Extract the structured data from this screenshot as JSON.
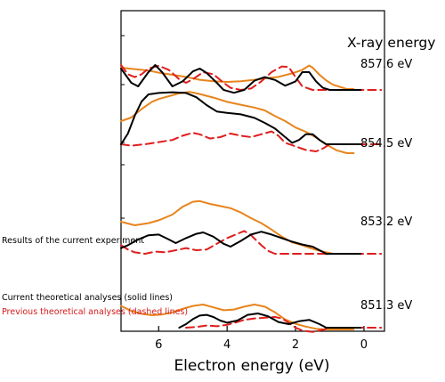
{
  "chart_data": {
    "type": "line",
    "title": "",
    "xlabel": "Electron energy (eV)",
    "ylabel": "",
    "xlim": [
      7.1,
      -0.6
    ],
    "x_reversed": true,
    "xticks": [
      6,
      4,
      2,
      0
    ],
    "grid": false,
    "legend_title": "X-ray energy",
    "annotations": [
      "Results of the current experiment",
      "Current theoretical analyses (solid lines)",
      "Previous theoretical analyses (dashed lines)"
    ],
    "styles": {
      "experiment": {
        "color": "#e8841c",
        "dash": "solid"
      },
      "current_theory": {
        "color": "#000000",
        "dash": "solid"
      },
      "previous_theory": {
        "color": "#e01e1e",
        "dash": "dashed"
      }
    },
    "panels": [
      {
        "energy_label": "857.6 eV",
        "experiment": [
          [
            7.1,
            0.3
          ],
          [
            6.7,
            0.28
          ],
          [
            6.3,
            0.26
          ],
          [
            6.0,
            0.23
          ],
          [
            5.6,
            0.2
          ],
          [
            5.2,
            0.17
          ],
          [
            4.8,
            0.13
          ],
          [
            4.4,
            0.11
          ],
          [
            4.0,
            0.1
          ],
          [
            3.6,
            0.11
          ],
          [
            3.2,
            0.13
          ],
          [
            2.9,
            0.15
          ],
          [
            2.5,
            0.17
          ],
          [
            2.1,
            0.22
          ],
          [
            1.8,
            0.27
          ],
          [
            1.6,
            0.33
          ],
          [
            1.5,
            0.3
          ],
          [
            1.3,
            0.2
          ],
          [
            1.1,
            0.12
          ],
          [
            0.9,
            0.06
          ],
          [
            0.7,
            0.03
          ],
          [
            0.5,
            0.0
          ],
          [
            0.3,
            0.0
          ]
        ],
        "current_theory": [
          [
            7.1,
            0.3
          ],
          [
            6.8,
            0.1
          ],
          [
            6.6,
            0.05
          ],
          [
            6.3,
            0.25
          ],
          [
            6.1,
            0.35
          ],
          [
            5.9,
            0.25
          ],
          [
            5.6,
            0.05
          ],
          [
            5.3,
            0.12
          ],
          [
            5.0,
            0.26
          ],
          [
            4.8,
            0.3
          ],
          [
            4.6,
            0.24
          ],
          [
            4.3,
            0.1
          ],
          [
            4.1,
            0.0
          ],
          [
            3.8,
            -0.04
          ],
          [
            3.5,
            0.0
          ],
          [
            3.2,
            0.13
          ],
          [
            2.9,
            0.18
          ],
          [
            2.6,
            0.14
          ],
          [
            2.3,
            0.06
          ],
          [
            2.0,
            0.12
          ],
          [
            1.8,
            0.25
          ],
          [
            1.6,
            0.25
          ],
          [
            1.4,
            0.12
          ],
          [
            1.2,
            0.03
          ],
          [
            1.0,
            0.0
          ],
          [
            0.5,
            0.0
          ],
          [
            0.1,
            0.0
          ]
        ],
        "previous_theory": [
          [
            7.1,
            0.35
          ],
          [
            6.9,
            0.22
          ],
          [
            6.7,
            0.18
          ],
          [
            6.5,
            0.22
          ],
          [
            6.3,
            0.3
          ],
          [
            6.0,
            0.34
          ],
          [
            5.7,
            0.28
          ],
          [
            5.4,
            0.15
          ],
          [
            5.2,
            0.1
          ],
          [
            5.0,
            0.15
          ],
          [
            4.7,
            0.25
          ],
          [
            4.4,
            0.22
          ],
          [
            4.1,
            0.1
          ],
          [
            3.9,
            0.03
          ],
          [
            3.6,
            0.0
          ],
          [
            3.3,
            0.02
          ],
          [
            3.0,
            0.12
          ],
          [
            2.7,
            0.25
          ],
          [
            2.4,
            0.33
          ],
          [
            2.2,
            0.32
          ],
          [
            2.0,
            0.18
          ],
          [
            1.8,
            0.05
          ],
          [
            1.5,
            0.0
          ],
          [
            0.9,
            0.0
          ],
          [
            -0.5,
            0.0
          ]
        ]
      },
      {
        "energy_label": "854.5 eV",
        "experiment": [
          [
            7.1,
            0.45
          ],
          [
            6.8,
            0.5
          ],
          [
            6.5,
            0.62
          ],
          [
            6.2,
            0.72
          ],
          [
            6.0,
            0.76
          ],
          [
            5.7,
            0.8
          ],
          [
            5.4,
            0.84
          ],
          [
            5.1,
            0.86
          ],
          [
            4.8,
            0.83
          ],
          [
            4.4,
            0.78
          ],
          [
            4.0,
            0.72
          ],
          [
            3.6,
            0.68
          ],
          [
            3.2,
            0.64
          ],
          [
            2.9,
            0.6
          ],
          [
            2.6,
            0.52
          ],
          [
            2.3,
            0.45
          ],
          [
            2.0,
            0.36
          ],
          [
            1.7,
            0.3
          ],
          [
            1.4,
            0.22
          ],
          [
            1.1,
            0.12
          ],
          [
            0.8,
            0.04
          ],
          [
            0.5,
            0.0
          ],
          [
            0.3,
            0.0
          ]
        ],
        "current_theory": [
          [
            7.1,
            0.0
          ],
          [
            6.9,
            0.15
          ],
          [
            6.7,
            0.4
          ],
          [
            6.5,
            0.6
          ],
          [
            6.3,
            0.7
          ],
          [
            6.0,
            0.72
          ],
          [
            5.6,
            0.73
          ],
          [
            5.2,
            0.72
          ],
          [
            4.9,
            0.66
          ],
          [
            4.6,
            0.55
          ],
          [
            4.3,
            0.46
          ],
          [
            4.0,
            0.44
          ],
          [
            3.6,
            0.42
          ],
          [
            3.2,
            0.37
          ],
          [
            2.9,
            0.3
          ],
          [
            2.6,
            0.22
          ],
          [
            2.3,
            0.1
          ],
          [
            2.1,
            0.02
          ],
          [
            1.9,
            0.06
          ],
          [
            1.7,
            0.14
          ],
          [
            1.5,
            0.14
          ],
          [
            1.3,
            0.06
          ],
          [
            1.1,
            0.0
          ],
          [
            0.9,
            0.0
          ],
          [
            0.1,
            0.0
          ]
        ],
        "previous_theory": [
          [
            7.1,
            0.0
          ],
          [
            6.8,
            -0.02
          ],
          [
            6.4,
            0.0
          ],
          [
            6.0,
            0.03
          ],
          [
            5.6,
            0.06
          ],
          [
            5.3,
            0.12
          ],
          [
            5.0,
            0.16
          ],
          [
            4.8,
            0.14
          ],
          [
            4.5,
            0.08
          ],
          [
            4.2,
            0.1
          ],
          [
            3.9,
            0.15
          ],
          [
            3.6,
            0.12
          ],
          [
            3.3,
            0.1
          ],
          [
            3.0,
            0.14
          ],
          [
            2.7,
            0.18
          ],
          [
            2.5,
            0.12
          ],
          [
            2.3,
            0.02
          ],
          [
            2.0,
            -0.03
          ],
          [
            1.7,
            -0.08
          ],
          [
            1.4,
            -0.1
          ],
          [
            1.2,
            -0.06
          ],
          [
            1.0,
            0.0
          ],
          [
            -0.5,
            0.0
          ]
        ]
      },
      {
        "energy_label": "853.2 eV",
        "experiment": [
          [
            7.1,
            0.45
          ],
          [
            6.7,
            0.4
          ],
          [
            6.3,
            0.43
          ],
          [
            6.0,
            0.47
          ],
          [
            5.6,
            0.55
          ],
          [
            5.3,
            0.66
          ],
          [
            5.0,
            0.73
          ],
          [
            4.8,
            0.74
          ],
          [
            4.5,
            0.7
          ],
          [
            4.2,
            0.67
          ],
          [
            3.9,
            0.64
          ],
          [
            3.6,
            0.58
          ],
          [
            3.3,
            0.5
          ],
          [
            3.0,
            0.43
          ],
          [
            2.7,
            0.34
          ],
          [
            2.4,
            0.24
          ],
          [
            2.1,
            0.16
          ],
          [
            1.8,
            0.12
          ],
          [
            1.5,
            0.07
          ],
          [
            1.2,
            0.03
          ],
          [
            0.9,
            0.0
          ],
          [
            0.3,
            0.0
          ]
        ],
        "current_theory": [
          [
            7.1,
            0.08
          ],
          [
            6.9,
            0.12
          ],
          [
            6.6,
            0.2
          ],
          [
            6.3,
            0.26
          ],
          [
            6.0,
            0.27
          ],
          [
            5.7,
            0.2
          ],
          [
            5.5,
            0.15
          ],
          [
            5.2,
            0.22
          ],
          [
            4.9,
            0.28
          ],
          [
            4.7,
            0.3
          ],
          [
            4.4,
            0.24
          ],
          [
            4.1,
            0.14
          ],
          [
            3.9,
            0.1
          ],
          [
            3.6,
            0.18
          ],
          [
            3.3,
            0.27
          ],
          [
            3.0,
            0.31
          ],
          [
            2.7,
            0.27
          ],
          [
            2.4,
            0.22
          ],
          [
            2.1,
            0.17
          ],
          [
            1.8,
            0.13
          ],
          [
            1.5,
            0.1
          ],
          [
            1.3,
            0.05
          ],
          [
            1.1,
            0.0
          ],
          [
            0.1,
            0.0
          ]
        ],
        "previous_theory": [
          [
            7.1,
            0.12
          ],
          [
            6.9,
            0.06
          ],
          [
            6.7,
            0.02
          ],
          [
            6.4,
            0.0
          ],
          [
            6.1,
            0.03
          ],
          [
            5.8,
            0.02
          ],
          [
            5.5,
            0.05
          ],
          [
            5.2,
            0.08
          ],
          [
            4.9,
            0.05
          ],
          [
            4.6,
            0.06
          ],
          [
            4.3,
            0.14
          ],
          [
            4.0,
            0.22
          ],
          [
            3.7,
            0.28
          ],
          [
            3.5,
            0.32
          ],
          [
            3.3,
            0.26
          ],
          [
            3.0,
            0.12
          ],
          [
            2.8,
            0.04
          ],
          [
            2.6,
            0.0
          ],
          [
            2.3,
            0.0
          ],
          [
            -0.5,
            0.0
          ]
        ]
      },
      {
        "energy_label": "851.3 eV",
        "experiment": [
          [
            7.1,
            0.33
          ],
          [
            6.8,
            0.26
          ],
          [
            6.5,
            0.22
          ],
          [
            6.2,
            0.2
          ],
          [
            5.9,
            0.21
          ],
          [
            5.6,
            0.24
          ],
          [
            5.3,
            0.29
          ],
          [
            5.0,
            0.33
          ],
          [
            4.7,
            0.35
          ],
          [
            4.4,
            0.31
          ],
          [
            4.1,
            0.27
          ],
          [
            3.8,
            0.28
          ],
          [
            3.5,
            0.32
          ],
          [
            3.2,
            0.35
          ],
          [
            2.9,
            0.32
          ],
          [
            2.6,
            0.24
          ],
          [
            2.3,
            0.14
          ],
          [
            2.0,
            0.08
          ],
          [
            1.7,
            0.04
          ],
          [
            1.4,
            0.01
          ],
          [
            1.1,
            0.0
          ],
          [
            0.3,
            0.0
          ]
        ],
        "current_theory": [
          [
            5.4,
            0.0
          ],
          [
            5.2,
            0.05
          ],
          [
            5.0,
            0.12
          ],
          [
            4.8,
            0.17
          ],
          [
            4.6,
            0.18
          ],
          [
            4.4,
            0.15
          ],
          [
            4.2,
            0.1
          ],
          [
            4.0,
            0.07
          ],
          [
            3.7,
            0.1
          ],
          [
            3.4,
            0.18
          ],
          [
            3.1,
            0.2
          ],
          [
            2.8,
            0.16
          ],
          [
            2.5,
            0.08
          ],
          [
            2.2,
            0.05
          ],
          [
            1.9,
            0.09
          ],
          [
            1.6,
            0.11
          ],
          [
            1.3,
            0.05
          ],
          [
            1.1,
            0.0
          ],
          [
            0.1,
            0.0
          ]
        ],
        "previous_theory": [
          [
            5.2,
            0.0
          ],
          [
            4.9,
            0.01
          ],
          [
            4.6,
            0.03
          ],
          [
            4.3,
            0.02
          ],
          [
            4.0,
            0.04
          ],
          [
            3.7,
            0.08
          ],
          [
            3.5,
            0.11
          ],
          [
            3.2,
            0.13
          ],
          [
            2.9,
            0.14
          ],
          [
            2.6,
            0.15
          ],
          [
            2.4,
            0.13
          ],
          [
            2.2,
            0.07
          ],
          [
            2.0,
            0.0
          ],
          [
            1.8,
            -0.04
          ],
          [
            1.5,
            -0.06
          ],
          [
            1.2,
            -0.03
          ],
          [
            1.0,
            0.0
          ],
          [
            -0.5,
            0.0
          ]
        ]
      }
    ]
  }
}
